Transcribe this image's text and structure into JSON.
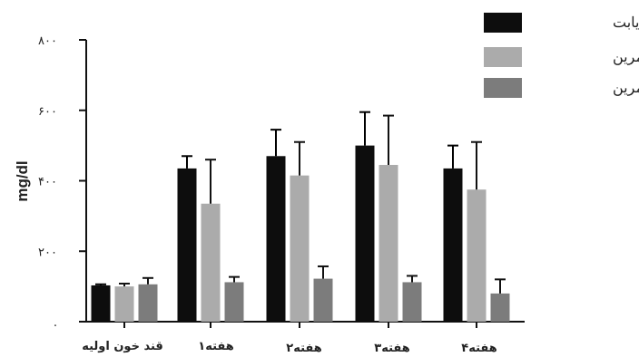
{
  "chart_data": {
    "type": "bar",
    "ylabel": "mg/dl",
    "xlabel": "",
    "ylim": [
      0,
      800
    ],
    "yticks": [
      {
        "value": 0,
        "label": "."
      },
      {
        "value": 200,
        "label": "۲۰۰"
      },
      {
        "value": 400,
        "label": "۴۰۰"
      },
      {
        "value": 600,
        "label": "۶۰۰"
      },
      {
        "value": 800,
        "label": "۸۰۰"
      }
    ],
    "categories": [
      "قند خون اولیه",
      "هفته۱",
      "هفته۲",
      "هفته۳",
      "هفته۴"
    ],
    "series": [
      {
        "name": "دیابت",
        "color": "#0d0d0d",
        "values": [
          103,
          435,
          470,
          500,
          435
        ],
        "errors": [
          3,
          35,
          75,
          95,
          65
        ]
      },
      {
        "name": "دیابت تمرین",
        "color": "#ababab",
        "values": [
          100,
          335,
          415,
          445,
          375
        ],
        "errors": [
          8,
          125,
          95,
          140,
          135
        ]
      },
      {
        "name": "تمرین",
        "color": "#7c7c7c",
        "values": [
          106,
          112,
          122,
          112,
          80
        ],
        "errors": [
          18,
          15,
          35,
          18,
          40
        ]
      }
    ],
    "legend_position": "top-right",
    "grid": false
  }
}
